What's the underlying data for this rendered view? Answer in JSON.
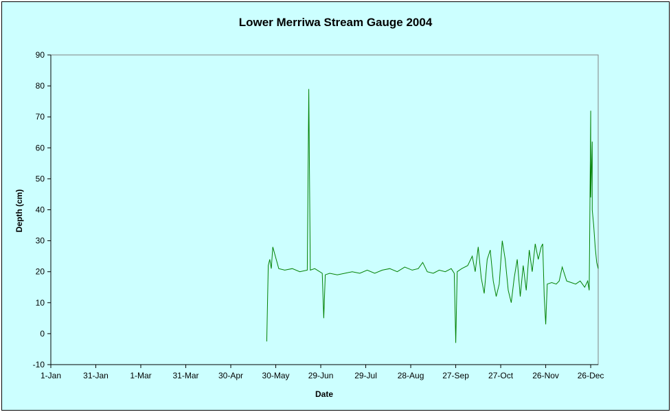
{
  "chart_data": {
    "type": "line",
    "title": "Lower Merriwa Stream Gauge 2004",
    "xlabel": "Date",
    "ylabel": "Depth (cm)",
    "ylim": [
      -10,
      90
    ],
    "yticks": [
      -10,
      0,
      10,
      20,
      30,
      40,
      50,
      60,
      70,
      80,
      90
    ],
    "xlim": [
      "2004-01-01",
      "2004-12-31"
    ],
    "xticks": [
      {
        "date": "2004-01-01",
        "label": "1-Jan"
      },
      {
        "date": "2004-01-31",
        "label": "31-Jan"
      },
      {
        "date": "2004-03-01",
        "label": "1-Mar"
      },
      {
        "date": "2004-03-31",
        "label": "31-Mar"
      },
      {
        "date": "2004-04-30",
        "label": "30-Apr"
      },
      {
        "date": "2004-05-30",
        "label": "30-May"
      },
      {
        "date": "2004-06-29",
        "label": "29-Jun"
      },
      {
        "date": "2004-07-29",
        "label": "29-Jul"
      },
      {
        "date": "2004-08-28",
        "label": "28-Aug"
      },
      {
        "date": "2004-09-27",
        "label": "27-Sep"
      },
      {
        "date": "2004-10-27",
        "label": "27-Oct"
      },
      {
        "date": "2004-11-26",
        "label": "26-Nov"
      },
      {
        "date": "2004-12-26",
        "label": "26-Dec"
      }
    ],
    "grid": false,
    "legend": "none",
    "plot_background": "#ccffff",
    "line_color": "#008000",
    "series": [
      {
        "x": [
          "2004-05-24",
          "2004-05-25",
          "2004-05-26",
          "2004-05-27",
          "2004-05-28",
          "2004-06-01",
          "2004-06-05",
          "2004-06-10",
          "2004-06-15",
          "2004-06-20",
          "2004-06-21",
          "2004-06-22",
          "2004-06-25",
          "2004-06-30",
          "2004-07-01",
          "2004-07-02",
          "2004-07-05",
          "2004-07-10",
          "2004-07-15",
          "2004-07-20",
          "2004-07-25",
          "2004-07-30",
          "2004-08-04",
          "2004-08-09",
          "2004-08-14",
          "2004-08-19",
          "2004-08-24",
          "2004-08-29",
          "2004-09-02",
          "2004-09-05",
          "2004-09-08",
          "2004-09-12",
          "2004-09-16",
          "2004-09-20",
          "2004-09-24",
          "2004-09-26",
          "2004-09-27",
          "2004-09-28",
          "2004-10-01",
          "2004-10-05",
          "2004-10-08",
          "2004-10-10",
          "2004-10-12",
          "2004-10-14",
          "2004-10-16",
          "2004-10-18",
          "2004-10-20",
          "2004-10-22",
          "2004-10-24",
          "2004-10-26",
          "2004-10-28",
          "2004-10-30",
          "2004-11-01",
          "2004-11-03",
          "2004-11-05",
          "2004-11-07",
          "2004-11-09",
          "2004-11-11",
          "2004-11-13",
          "2004-11-15",
          "2004-11-17",
          "2004-11-19",
          "2004-11-21",
          "2004-11-23",
          "2004-11-24",
          "2004-11-25",
          "2004-11-26",
          "2004-11-27",
          "2004-11-30",
          "2004-12-03",
          "2004-12-05",
          "2004-12-07",
          "2004-12-10",
          "2004-12-13",
          "2004-12-16",
          "2004-12-19",
          "2004-12-22",
          "2004-12-24",
          "2004-12-25",
          "2004-12-26",
          "2004-12-26",
          "2004-12-27",
          "2004-12-27",
          "2004-12-28",
          "2004-12-29",
          "2004-12-30",
          "2004-12-31"
        ],
        "y": [
          -2.5,
          22,
          24,
          21,
          28,
          21,
          20.5,
          21,
          20,
          20.5,
          79,
          20.5,
          21,
          19.5,
          5,
          19,
          19.5,
          19,
          19.5,
          20,
          19.5,
          20.5,
          19.5,
          20.5,
          21,
          20,
          21.5,
          20.5,
          21,
          23,
          20,
          19.5,
          20.5,
          20,
          21,
          19.5,
          -3,
          20,
          21,
          22,
          25,
          20,
          28,
          18,
          13,
          24,
          27,
          17,
          12,
          16,
          30,
          24,
          14,
          10,
          18,
          24,
          12,
          22,
          14,
          27,
          20,
          29,
          24,
          28,
          29,
          12,
          3,
          16,
          16.5,
          16,
          17,
          21.5,
          17,
          16.5,
          16,
          17,
          15,
          17,
          14,
          72,
          44,
          62,
          40,
          35,
          28,
          23,
          21
        ]
      }
    ]
  }
}
